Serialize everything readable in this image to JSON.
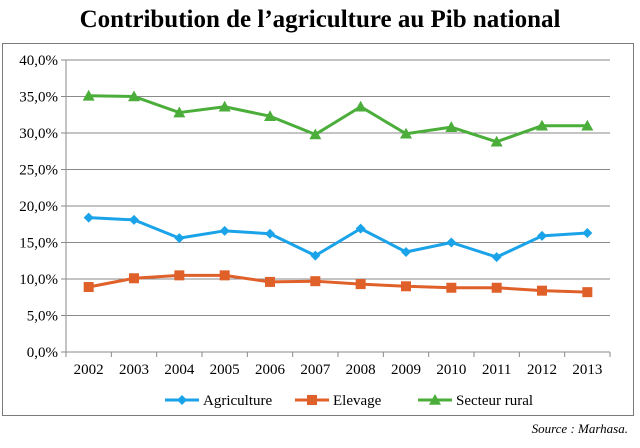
{
  "chart_data": {
    "type": "line",
    "title": "Contribution de l’agriculture au Pib national",
    "xlabel": "",
    "ylabel": "",
    "ylim": [
      0,
      40
    ],
    "yticks": [
      "0,0%",
      "5,0%",
      "10,0%",
      "15,0%",
      "20,0%",
      "25,0%",
      "30,0%",
      "35,0%",
      "40,0%"
    ],
    "grid": "horizontal",
    "legend_position": "bottom",
    "x": [
      "2002",
      "2003",
      "2004",
      "2005",
      "2006",
      "2007",
      "2008",
      "2009",
      "2010",
      "2011",
      "2012",
      "2013"
    ],
    "series": [
      {
        "name": "Agriculture",
        "color": "#1aa3e8",
        "marker": "diamond",
        "values": [
          18.4,
          18.1,
          15.6,
          16.6,
          16.2,
          13.2,
          16.9,
          13.7,
          15.0,
          13.0,
          15.9,
          16.3
        ]
      },
      {
        "name": "Elevage",
        "color": "#e0602a",
        "marker": "square",
        "values": [
          8.9,
          10.1,
          10.5,
          10.5,
          9.6,
          9.7,
          9.3,
          9.0,
          8.8,
          8.8,
          8.4,
          8.2
        ]
      },
      {
        "name": "Secteur rural",
        "color": "#4bae3a",
        "marker": "triangle",
        "values": [
          35.1,
          35.0,
          32.8,
          33.6,
          32.3,
          29.8,
          33.6,
          29.9,
          30.8,
          28.8,
          31.0,
          31.0
        ]
      }
    ]
  },
  "source": "Source : Marhasa."
}
